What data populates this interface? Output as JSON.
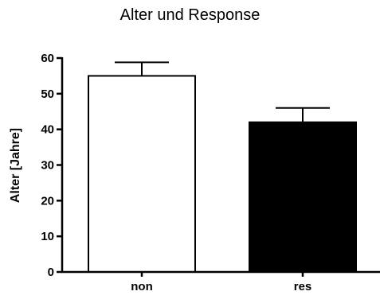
{
  "chart_data": {
    "type": "bar",
    "title": "Alter und Response",
    "xlabel": "",
    "ylabel": "Alter [Jahre]",
    "ylim": [
      0,
      60
    ],
    "yticks": [
      0,
      10,
      20,
      30,
      40,
      50,
      60
    ],
    "grid": false,
    "legend": "none",
    "categories": [
      "non",
      "res"
    ],
    "values": [
      55,
      42
    ],
    "error_upper": [
      3.8,
      4
    ],
    "bar_colors": [
      "#ffffff",
      "#000000"
    ],
    "bar_edge_color": "#000000"
  }
}
